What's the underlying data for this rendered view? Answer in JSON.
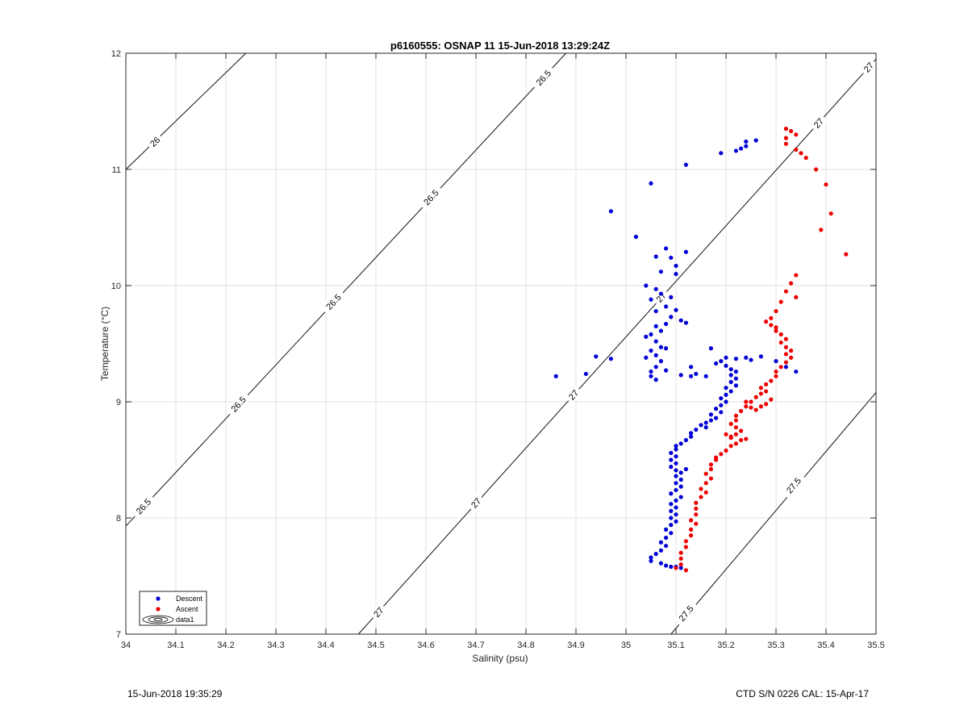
{
  "chart_data": {
    "type": "scatter",
    "title": "p6160555: OSNAP 11 15-Jun-2018 13:29:24Z",
    "xlabel": "Salinity (psu)",
    "ylabel": "Temperature (°C)",
    "xlim": [
      34,
      35.5
    ],
    "ylim": [
      7,
      12
    ],
    "xticks": [
      34,
      34.1,
      34.2,
      34.3,
      34.4,
      34.5,
      34.6,
      34.7,
      34.8,
      34.9,
      35,
      35.1,
      35.2,
      35.3,
      35.4,
      35.5
    ],
    "xtick_labels": [
      "34",
      "34.1",
      "34.2",
      "34.3",
      "34.4",
      "34.5",
      "34.6",
      "34.7",
      "34.8",
      "34.9",
      "35",
      "35.1",
      "35.2",
      "35.3",
      "35.4",
      "35.5"
    ],
    "yticks": [
      7,
      8,
      9,
      10,
      11,
      12
    ],
    "ytick_labels": [
      "7",
      "8",
      "9",
      "10",
      "11",
      "12"
    ],
    "grid": true,
    "legend_position": "bottom-left",
    "legend": [
      "Descent",
      "Ascent",
      "data1"
    ],
    "density_contours": [
      {
        "label": "26",
        "points": [
          [
            34.0,
            11.0
          ],
          [
            34.24,
            12.0
          ]
        ],
        "labels_at": [
          [
            34.058,
            11.24
          ]
        ]
      },
      {
        "label": "26.5",
        "points": [
          [
            34.0,
            7.93
          ],
          [
            34.88,
            12.0
          ]
        ],
        "labels_at": [
          [
            34.035,
            8.1
          ],
          [
            34.225,
            8.98
          ],
          [
            34.415,
            9.86
          ],
          [
            34.61,
            10.76
          ],
          [
            34.835,
            11.79
          ]
        ]
      },
      {
        "label": "27",
        "points": [
          [
            34.465,
            7.0
          ],
          [
            35.5,
            11.95
          ]
        ],
        "labels_at": [
          [
            34.505,
            7.19
          ],
          [
            34.7,
            8.13
          ],
          [
            34.895,
            9.06
          ],
          [
            35.07,
            9.9
          ],
          [
            35.385,
            11.4
          ],
          [
            35.485,
            11.88
          ]
        ]
      },
      {
        "label": "27.5",
        "points": [
          [
            35.09,
            7.0
          ],
          [
            35.5,
            9.08
          ]
        ],
        "labels_at": [
          [
            35.12,
            7.18
          ],
          [
            35.335,
            8.28
          ]
        ]
      }
    ],
    "series": [
      {
        "name": "Descent",
        "color": "#0000d6",
        "points": [
          [
            35.26,
            11.25
          ],
          [
            35.24,
            11.24
          ],
          [
            35.24,
            11.2
          ],
          [
            35.23,
            11.18
          ],
          [
            35.22,
            11.16
          ],
          [
            35.19,
            11.14
          ],
          [
            35.12,
            11.04
          ],
          [
            35.05,
            10.88
          ],
          [
            34.97,
            10.64
          ],
          [
            35.02,
            10.42
          ],
          [
            35.08,
            10.32
          ],
          [
            35.12,
            10.29
          ],
          [
            35.09,
            10.24
          ],
          [
            35.06,
            10.25
          ],
          [
            35.1,
            10.17
          ],
          [
            35.1,
            10.1
          ],
          [
            35.07,
            10.12
          ],
          [
            35.04,
            10.0
          ],
          [
            35.06,
            9.97
          ],
          [
            35.07,
            9.93
          ],
          [
            35.09,
            9.9
          ],
          [
            35.05,
            9.88
          ],
          [
            35.08,
            9.82
          ],
          [
            35.06,
            9.78
          ],
          [
            35.1,
            9.79
          ],
          [
            35.09,
            9.73
          ],
          [
            35.11,
            9.7
          ],
          [
            35.12,
            9.68
          ],
          [
            35.08,
            9.67
          ],
          [
            35.06,
            9.65
          ],
          [
            35.07,
            9.61
          ],
          [
            35.05,
            9.58
          ],
          [
            35.04,
            9.56
          ],
          [
            35.06,
            9.52
          ],
          [
            35.07,
            9.47
          ],
          [
            35.08,
            9.46
          ],
          [
            35.05,
            9.44
          ],
          [
            35.06,
            9.4
          ],
          [
            35.07,
            9.35
          ],
          [
            35.04,
            9.38
          ],
          [
            35.06,
            9.3
          ],
          [
            35.05,
            9.26
          ],
          [
            35.05,
            9.22
          ],
          [
            35.06,
            9.19
          ],
          [
            35.08,
            9.27
          ],
          [
            34.86,
            9.22
          ],
          [
            34.92,
            9.24
          ],
          [
            34.94,
            9.39
          ],
          [
            34.97,
            9.37
          ],
          [
            35.11,
            9.23
          ],
          [
            35.13,
            9.22
          ],
          [
            35.14,
            9.24
          ],
          [
            35.16,
            9.22
          ],
          [
            35.13,
            9.3
          ],
          [
            35.17,
            9.46
          ],
          [
            35.18,
            9.33
          ],
          [
            35.19,
            9.35
          ],
          [
            35.2,
            9.38
          ],
          [
            35.22,
            9.37
          ],
          [
            35.24,
            9.38
          ],
          [
            35.25,
            9.36
          ],
          [
            35.27,
            9.39
          ],
          [
            35.3,
            9.35
          ],
          [
            35.32,
            9.3
          ],
          [
            35.34,
            9.26
          ],
          [
            35.2,
            9.31
          ],
          [
            35.21,
            9.28
          ],
          [
            35.22,
            9.26
          ],
          [
            35.21,
            9.23
          ],
          [
            35.22,
            9.2
          ],
          [
            35.21,
            9.17
          ],
          [
            35.22,
            9.14
          ],
          [
            35.2,
            9.12
          ],
          [
            35.21,
            9.09
          ],
          [
            35.2,
            9.06
          ],
          [
            35.19,
            9.03
          ],
          [
            35.2,
            9.0
          ],
          [
            35.19,
            8.97
          ],
          [
            35.18,
            8.94
          ],
          [
            35.19,
            8.91
          ],
          [
            35.17,
            8.89
          ],
          [
            35.18,
            8.86
          ],
          [
            35.17,
            8.84
          ],
          [
            35.16,
            8.82
          ],
          [
            35.15,
            8.8
          ],
          [
            35.16,
            8.78
          ],
          [
            35.14,
            8.76
          ],
          [
            35.13,
            8.73
          ],
          [
            35.13,
            8.7
          ],
          [
            35.12,
            8.67
          ],
          [
            35.11,
            8.64
          ],
          [
            35.1,
            8.62
          ],
          [
            35.1,
            8.59
          ],
          [
            35.09,
            8.56
          ],
          [
            35.1,
            8.53
          ],
          [
            35.09,
            8.5
          ],
          [
            35.1,
            8.47
          ],
          [
            35.09,
            8.44
          ],
          [
            35.1,
            8.41
          ],
          [
            35.11,
            8.39
          ],
          [
            35.1,
            8.36
          ],
          [
            35.11,
            8.33
          ],
          [
            35.1,
            8.3
          ],
          [
            35.11,
            8.27
          ],
          [
            35.1,
            8.24
          ],
          [
            35.09,
            8.21
          ],
          [
            35.11,
            8.18
          ],
          [
            35.1,
            8.15
          ],
          [
            35.09,
            8.12
          ],
          [
            35.1,
            8.09
          ],
          [
            35.09,
            8.06
          ],
          [
            35.1,
            8.03
          ],
          [
            35.09,
            8.0
          ],
          [
            35.1,
            7.97
          ],
          [
            35.09,
            7.94
          ],
          [
            35.08,
            7.9
          ],
          [
            35.09,
            7.87
          ],
          [
            35.08,
            7.83
          ],
          [
            35.07,
            7.79
          ],
          [
            35.08,
            7.76
          ],
          [
            35.07,
            7.72
          ],
          [
            35.06,
            7.69
          ],
          [
            35.05,
            7.66
          ],
          [
            35.05,
            7.63
          ],
          [
            35.07,
            7.61
          ],
          [
            35.08,
            7.59
          ],
          [
            35.09,
            7.58
          ],
          [
            35.1,
            7.58
          ],
          [
            35.11,
            7.57
          ],
          [
            35.12,
            8.42
          ]
        ]
      },
      {
        "name": "Ascent",
        "color": "#ec0000",
        "points": [
          [
            35.32,
            11.35
          ],
          [
            35.33,
            11.33
          ],
          [
            35.34,
            11.3
          ],
          [
            35.32,
            11.27
          ],
          [
            35.32,
            11.22
          ],
          [
            35.34,
            11.17
          ],
          [
            35.35,
            11.14
          ],
          [
            35.36,
            11.1
          ],
          [
            35.38,
            11.0
          ],
          [
            35.4,
            10.87
          ],
          [
            35.41,
            10.62
          ],
          [
            35.39,
            10.48
          ],
          [
            35.44,
            10.27
          ],
          [
            35.34,
            10.09
          ],
          [
            35.33,
            10.02
          ],
          [
            35.32,
            9.95
          ],
          [
            35.34,
            9.9
          ],
          [
            35.31,
            9.86
          ],
          [
            35.3,
            9.78
          ],
          [
            35.29,
            9.72
          ],
          [
            35.28,
            9.69
          ],
          [
            35.29,
            9.66
          ],
          [
            35.3,
            9.64
          ],
          [
            35.3,
            9.61
          ],
          [
            35.31,
            9.58
          ],
          [
            35.32,
            9.54
          ],
          [
            35.31,
            9.51
          ],
          [
            35.32,
            9.47
          ],
          [
            35.33,
            9.44
          ],
          [
            35.32,
            9.41
          ],
          [
            35.33,
            9.38
          ],
          [
            35.32,
            9.34
          ],
          [
            35.31,
            9.3
          ],
          [
            35.3,
            9.26
          ],
          [
            35.3,
            9.22
          ],
          [
            35.29,
            9.18
          ],
          [
            35.28,
            9.15
          ],
          [
            35.27,
            9.12
          ],
          [
            35.28,
            9.09
          ],
          [
            35.27,
            9.07
          ],
          [
            35.26,
            9.04
          ],
          [
            35.25,
            9.0
          ],
          [
            35.24,
            8.96
          ],
          [
            35.23,
            8.92
          ],
          [
            35.22,
            8.88
          ],
          [
            35.22,
            8.84
          ],
          [
            35.21,
            8.81
          ],
          [
            35.22,
            8.78
          ],
          [
            35.23,
            8.75
          ],
          [
            35.22,
            8.72
          ],
          [
            35.21,
            8.69
          ],
          [
            35.23,
            8.67
          ],
          [
            35.22,
            8.64
          ],
          [
            35.21,
            8.62
          ],
          [
            35.2,
            8.58
          ],
          [
            35.19,
            8.55
          ],
          [
            35.18,
            8.5
          ],
          [
            35.17,
            8.46
          ],
          [
            35.17,
            8.42
          ],
          [
            35.16,
            8.38
          ],
          [
            35.17,
            8.34
          ],
          [
            35.16,
            8.3
          ],
          [
            35.15,
            8.25
          ],
          [
            35.16,
            8.22
          ],
          [
            35.15,
            8.18
          ],
          [
            35.14,
            8.13
          ],
          [
            35.14,
            8.08
          ],
          [
            35.14,
            8.03
          ],
          [
            35.13,
            7.98
          ],
          [
            35.14,
            7.95
          ],
          [
            35.13,
            7.9
          ],
          [
            35.13,
            7.85
          ],
          [
            35.12,
            7.8
          ],
          [
            35.12,
            7.75
          ],
          [
            35.11,
            7.7
          ],
          [
            35.11,
            7.65
          ],
          [
            35.11,
            7.6
          ],
          [
            35.1,
            7.57
          ],
          [
            35.12,
            7.55
          ],
          [
            35.24,
            9.0
          ],
          [
            35.25,
            8.95
          ],
          [
            35.26,
            8.93
          ],
          [
            35.27,
            8.96
          ],
          [
            35.28,
            8.98
          ],
          [
            35.29,
            9.02
          ],
          [
            35.21,
            8.7
          ],
          [
            35.2,
            8.72
          ],
          [
            35.24,
            8.68
          ],
          [
            35.18,
            8.52
          ]
        ]
      }
    ]
  },
  "footer": {
    "timestamp": "15-Jun-2018 19:35:29",
    "instrument": "CTD S/N 0226  CAL: 15-Apr-17"
  }
}
